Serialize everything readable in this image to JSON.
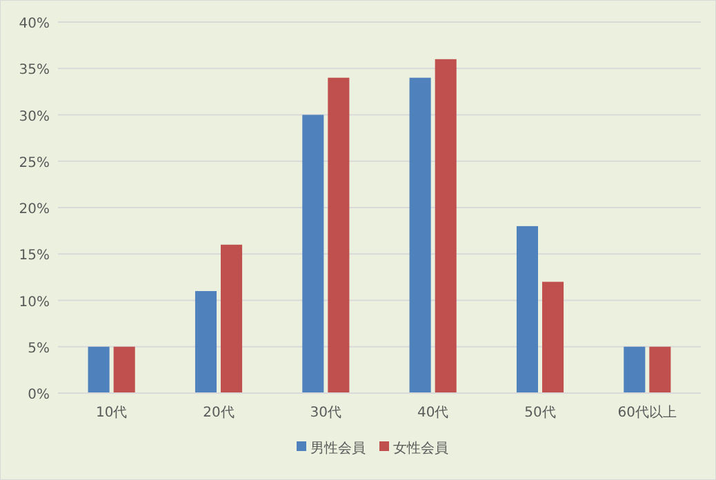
{
  "chart_data": {
    "type": "bar",
    "categories": [
      "10代",
      "20代",
      "30代",
      "40代",
      "50代",
      "60代以上"
    ],
    "series": [
      {
        "name": "男性会員",
        "color": "#4f81bd",
        "values": [
          5,
          11,
          30,
          34,
          18,
          5
        ]
      },
      {
        "name": "女性会員",
        "color": "#c0504d",
        "values": [
          5,
          16,
          34,
          36,
          12,
          5
        ]
      }
    ],
    "ylim": [
      0,
      40
    ],
    "yticks": [
      {
        "value": 0,
        "label": "0%"
      },
      {
        "value": 5,
        "label": "5%"
      },
      {
        "value": 10,
        "label": "10%"
      },
      {
        "value": 15,
        "label": "15%"
      },
      {
        "value": 20,
        "label": "20%"
      },
      {
        "value": 25,
        "label": "25%"
      },
      {
        "value": 30,
        "label": "30%"
      },
      {
        "value": 35,
        "label": "35%"
      },
      {
        "value": 40,
        "label": "40%"
      }
    ],
    "grid": "y",
    "legend": "bottom"
  }
}
